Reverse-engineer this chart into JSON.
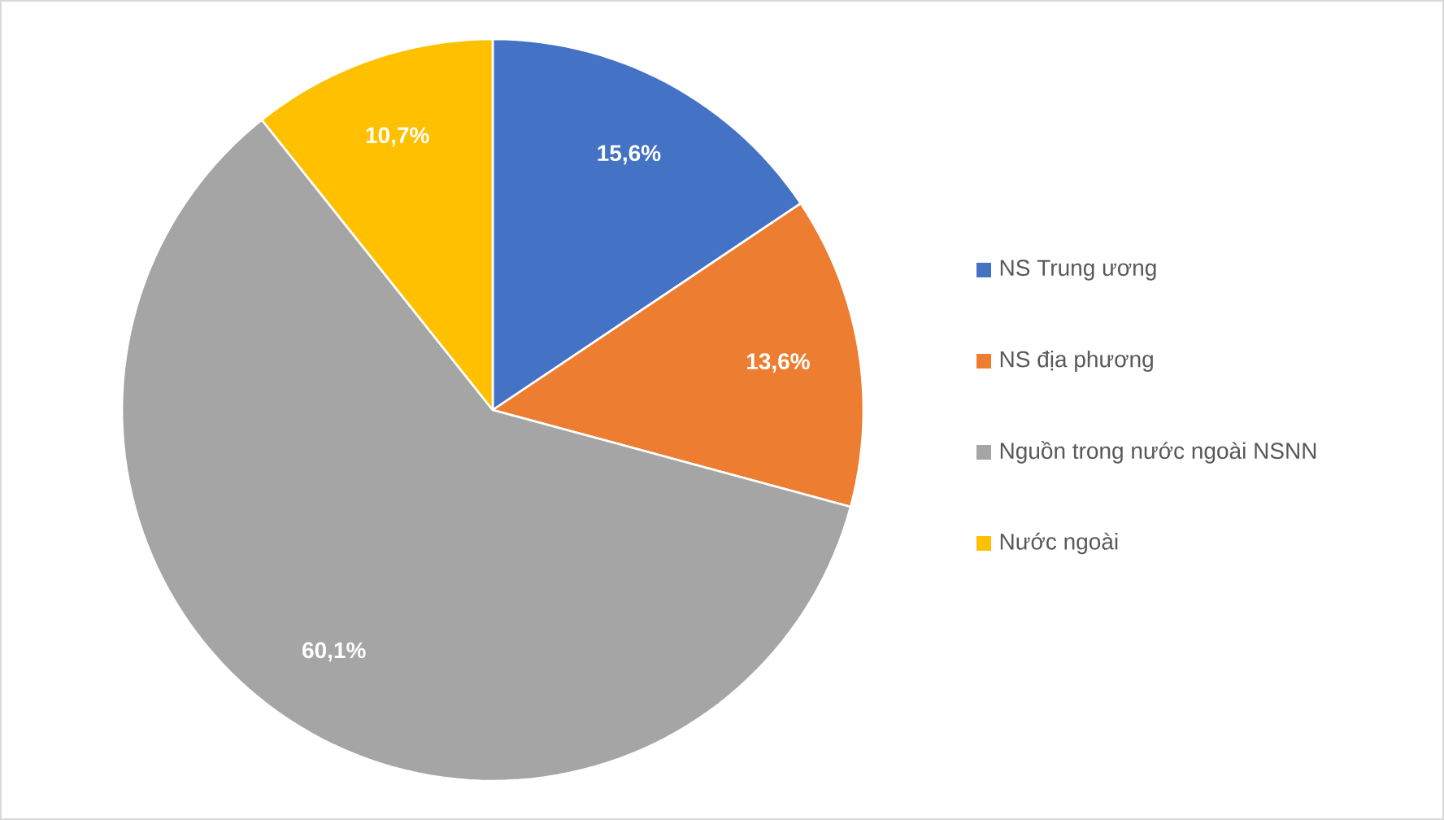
{
  "chart_data": {
    "type": "pie",
    "categories": [
      "NS Trung ương",
      "NS địa phương",
      "Nguồn trong nước ngoài NSNN",
      "Nước ngoài"
    ],
    "values": [
      15.6,
      13.6,
      60.1,
      10.7
    ],
    "colors": [
      "#4472c4",
      "#ed7d31",
      "#a5a5a5",
      "#ffc000"
    ],
    "value_labels": [
      "15,6%",
      "13,6%",
      "60,1%",
      "10,7%"
    ],
    "legend": "right"
  }
}
